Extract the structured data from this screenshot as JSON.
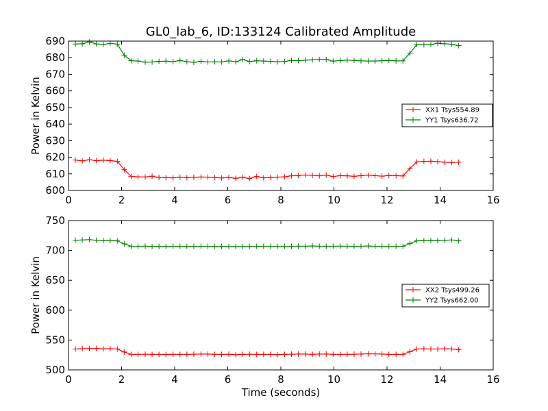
{
  "chart_data": [
    {
      "type": "line",
      "title": "GL0_lab_6, ID:133124 Calibrated Amplitude",
      "xlabel": "",
      "ylabel": "Power in Kelvin",
      "xlim": [
        0,
        16
      ],
      "ylim": [
        600,
        690
      ],
      "xticks": [
        0,
        2,
        4,
        6,
        8,
        10,
        12,
        14,
        16
      ],
      "yticks": [
        600,
        610,
        620,
        630,
        640,
        650,
        660,
        670,
        680,
        690
      ],
      "grid": false,
      "legend": "center-right",
      "x": [
        0.26,
        0.52,
        0.79,
        1.05,
        1.31,
        1.57,
        1.84,
        2.1,
        2.36,
        2.62,
        2.89,
        3.15,
        3.41,
        3.67,
        3.94,
        4.2,
        4.46,
        4.72,
        4.99,
        5.25,
        5.51,
        5.77,
        6.04,
        6.3,
        6.56,
        6.82,
        7.09,
        7.35,
        7.61,
        7.87,
        8.14,
        8.4,
        8.66,
        8.92,
        9.19,
        9.45,
        9.71,
        9.97,
        10.24,
        10.5,
        10.76,
        11.02,
        11.29,
        11.55,
        11.81,
        12.07,
        12.34,
        12.6,
        12.86,
        13.12,
        13.39,
        13.65,
        13.91,
        14.17,
        14.44,
        14.7
      ],
      "series": [
        {
          "name": "XX1 Tsys554.89",
          "color": "#ff0000",
          "values": [
            618.3,
            617.8,
            618.5,
            617.9,
            618.2,
            618.0,
            617.5,
            612.5,
            608.5,
            608.2,
            608.1,
            608.6,
            607.8,
            607.7,
            607.6,
            608.0,
            607.7,
            607.9,
            608.1,
            608.0,
            607.8,
            607.5,
            607.9,
            607.3,
            607.9,
            607.2,
            608.4,
            607.6,
            607.8,
            608.0,
            608.2,
            608.8,
            609.0,
            609.3,
            609.1,
            608.8,
            609.2,
            608.4,
            608.9,
            608.8,
            608.5,
            608.9,
            609.2,
            608.9,
            608.6,
            609.0,
            608.9,
            608.7,
            613.2,
            617.2,
            617.5,
            617.6,
            617.4,
            617.0,
            616.8,
            617.0
          ]
        },
        {
          "name": "YY1 Tsys636.72",
          "color": "#008000",
          "values": [
            688.2,
            688.4,
            689.5,
            688.3,
            688.0,
            688.6,
            688.2,
            681.5,
            678.2,
            678.0,
            677.3,
            677.4,
            677.8,
            677.9,
            677.6,
            678.3,
            677.6,
            677.2,
            677.8,
            677.4,
            677.5,
            677.4,
            678.1,
            677.5,
            678.9,
            677.6,
            678.2,
            678.0,
            677.8,
            677.5,
            677.7,
            678.4,
            678.2,
            678.5,
            678.7,
            678.9,
            678.9,
            677.9,
            678.3,
            678.5,
            678.4,
            678.1,
            678.0,
            678.0,
            678.2,
            678.3,
            678.1,
            678.1,
            682.7,
            687.9,
            687.8,
            687.9,
            688.7,
            688.4,
            688.1,
            687.3
          ]
        }
      ]
    },
    {
      "type": "line",
      "title": "",
      "xlabel": "Time (seconds)",
      "ylabel": "Power in Kelvin",
      "xlim": [
        0,
        16
      ],
      "ylim": [
        500,
        750
      ],
      "xticks": [
        0,
        2,
        4,
        6,
        8,
        10,
        12,
        14,
        16
      ],
      "yticks": [
        500,
        550,
        600,
        650,
        700,
        750
      ],
      "grid": false,
      "legend": "center-right",
      "x": [
        0.26,
        0.52,
        0.79,
        1.05,
        1.31,
        1.57,
        1.84,
        2.1,
        2.36,
        2.62,
        2.89,
        3.15,
        3.41,
        3.67,
        3.94,
        4.2,
        4.46,
        4.72,
        4.99,
        5.25,
        5.51,
        5.77,
        6.04,
        6.3,
        6.56,
        6.82,
        7.09,
        7.35,
        7.61,
        7.87,
        8.14,
        8.4,
        8.66,
        8.92,
        9.19,
        9.45,
        9.71,
        9.97,
        10.24,
        10.5,
        10.76,
        11.02,
        11.29,
        11.55,
        11.81,
        12.07,
        12.34,
        12.6,
        12.86,
        13.12,
        13.39,
        13.65,
        13.91,
        14.17,
        14.44,
        14.7
      ],
      "series": [
        {
          "name": "XX2 Tsys499.26",
          "color": "#ff0000",
          "values": [
            535.0,
            535.5,
            535.8,
            536.0,
            535.3,
            535.5,
            535.0,
            530.0,
            526.0,
            526.0,
            526.2,
            526.0,
            526.0,
            525.8,
            526.0,
            526.0,
            526.0,
            526.2,
            526.5,
            526.5,
            526.0,
            526.0,
            526.2,
            525.5,
            526.0,
            526.2,
            526.0,
            526.0,
            526.0,
            525.5,
            526.0,
            526.2,
            526.5,
            526.5,
            526.0,
            526.5,
            526.5,
            526.0,
            526.0,
            526.0,
            526.2,
            526.5,
            527.0,
            526.8,
            526.5,
            526.0,
            526.0,
            526.0,
            530.5,
            535.0,
            535.2,
            535.0,
            535.0,
            535.5,
            535.0,
            534.0
          ]
        },
        {
          "name": "YY2 Tsys662.00",
          "color": "#008000",
          "values": [
            717.0,
            717.5,
            718.0,
            717.0,
            716.5,
            716.8,
            716.0,
            711.0,
            707.0,
            707.0,
            707.2,
            706.5,
            706.8,
            706.5,
            707.0,
            707.0,
            706.8,
            706.8,
            707.0,
            707.0,
            706.8,
            706.8,
            706.5,
            706.5,
            706.5,
            706.8,
            707.0,
            707.0,
            707.0,
            707.0,
            707.0,
            707.0,
            707.2,
            707.0,
            707.5,
            707.0,
            707.0,
            707.0,
            707.2,
            707.0,
            707.0,
            707.0,
            707.5,
            707.0,
            707.0,
            707.0,
            707.0,
            707.0,
            711.5,
            716.0,
            716.5,
            716.5,
            716.5,
            717.0,
            717.5,
            716.0
          ]
        }
      ]
    }
  ]
}
